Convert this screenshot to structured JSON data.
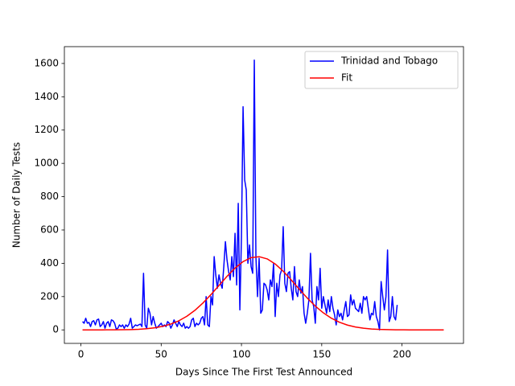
{
  "chart_data": {
    "type": "line",
    "xlabel": "Days Since The First Test Announced",
    "ylabel": "Number of Daily Tests",
    "xlim": [
      -10.3,
      238.3
    ],
    "xticks": [
      0,
      50,
      100,
      150,
      200
    ],
    "ylim": [
      -81,
      1701
    ],
    "yticks": [
      0,
      200,
      400,
      600,
      800,
      1000,
      1200,
      1400,
      1600
    ],
    "legend": "upper right",
    "series": [
      {
        "name": "Trinidad and Tobago",
        "color": "#0000ff",
        "x": [
          1,
          2,
          3,
          4,
          5,
          6,
          7,
          8,
          9,
          10,
          11,
          12,
          13,
          14,
          15,
          16,
          17,
          18,
          19,
          20,
          21,
          22,
          23,
          24,
          25,
          26,
          27,
          28,
          29,
          30,
          31,
          32,
          33,
          34,
          35,
          36,
          37,
          38,
          39,
          40,
          41,
          42,
          43,
          44,
          45,
          46,
          47,
          48,
          49,
          50,
          51,
          52,
          53,
          54,
          55,
          56,
          57,
          58,
          59,
          60,
          61,
          62,
          63,
          64,
          65,
          66,
          67,
          68,
          69,
          70,
          71,
          72,
          73,
          74,
          75,
          76,
          77,
          78,
          79,
          80,
          81,
          82,
          83,
          84,
          85,
          86,
          87,
          88,
          89,
          90,
          91,
          92,
          93,
          94,
          95,
          96,
          97,
          98,
          99,
          100,
          101,
          102,
          103,
          104,
          105,
          106,
          107,
          108,
          109,
          110,
          111,
          112,
          113,
          114,
          115,
          116,
          117,
          118,
          119,
          120,
          121,
          122,
          123,
          124,
          125,
          126,
          127,
          128,
          129,
          130,
          131,
          132,
          133,
          134,
          135,
          136,
          137,
          138,
          139,
          140,
          141,
          142,
          143,
          144,
          145,
          146,
          147,
          148,
          149,
          150,
          151,
          152,
          153,
          154,
          155,
          156,
          157,
          158,
          159,
          160,
          161,
          162,
          163,
          164,
          165,
          166,
          167,
          168,
          169,
          170,
          171,
          172,
          173,
          174,
          175,
          176,
          177,
          178,
          179,
          180,
          181,
          182,
          183,
          184,
          185,
          186,
          187,
          188,
          189,
          190,
          191,
          192,
          193,
          194,
          195,
          196,
          197
        ],
        "values": [
          50,
          40,
          70,
          40,
          45,
          20,
          50,
          55,
          30,
          60,
          65,
          20,
          30,
          50,
          10,
          40,
          50,
          20,
          60,
          55,
          40,
          5,
          10,
          30,
          20,
          30,
          10,
          30,
          20,
          35,
          70,
          10,
          20,
          30,
          25,
          30,
          35,
          20,
          340,
          30,
          10,
          130,
          100,
          30,
          80,
          40,
          10,
          20,
          30,
          40,
          20,
          30,
          20,
          50,
          40,
          10,
          30,
          60,
          40,
          20,
          50,
          30,
          20,
          40,
          10,
          20,
          10,
          20,
          60,
          70,
          20,
          40,
          30,
          40,
          70,
          80,
          30,
          200,
          30,
          20,
          200,
          150,
          440,
          330,
          250,
          330,
          280,
          250,
          380,
          530,
          420,
          350,
          300,
          440,
          320,
          580,
          270,
          760,
          120,
          560,
          1340,
          900,
          840,
          400,
          510,
          380,
          340,
          1620,
          440,
          200,
          430,
          100,
          120,
          280,
          270,
          240,
          180,
          300,
          260,
          400,
          80,
          280,
          200,
          330,
          360,
          620,
          280,
          230,
          340,
          350,
          250,
          180,
          380,
          230,
          200,
          300,
          220,
          260,
          100,
          40,
          100,
          180,
          460,
          180,
          140,
          40,
          260,
          180,
          370,
          130,
          200,
          150,
          100,
          180,
          110,
          200,
          130,
          90,
          30,
          120,
          80,
          100,
          60,
          120,
          170,
          80,
          90,
          210,
          150,
          180,
          130,
          120,
          110,
          160,
          100,
          200,
          180,
          200,
          130,
          60,
          100,
          90,
          170,
          80,
          50,
          0,
          290,
          200,
          120,
          200,
          480,
          50,
          80,
          200,
          80,
          60,
          150
        ]
      },
      {
        "name": "Fit",
        "color": "#ff0000",
        "x": [
          1,
          6,
          11,
          16,
          21,
          26,
          31,
          36,
          41,
          46,
          51,
          56,
          61,
          66,
          71,
          76,
          81,
          86,
          91,
          96,
          101,
          106,
          111,
          116,
          121,
          126,
          131,
          136,
          141,
          146,
          151,
          156,
          161,
          166,
          171,
          176,
          181,
          186,
          191,
          196,
          201,
          206,
          211,
          216,
          221,
          226
        ],
        "values": [
          0,
          0,
          0.1,
          0.2,
          0.5,
          1.0,
          1.9,
          3.8,
          7.1,
          12.6,
          21.4,
          35.0,
          54.7,
          81.9,
          117.5,
          161.3,
          212.0,
          266.9,
          321.6,
          371.2,
          410.1,
          433.9,
          439.6,
          426.5,
          396.1,
          352.3,
          300.0,
          244.7,
          191.0,
          142.9,
          102.3,
          70.1,
          46.0,
          28.9,
          17.4,
          10.0,
          5.5,
          2.9,
          1.5,
          0.7,
          0.3,
          0.1,
          0,
          0,
          0,
          0
        ]
      }
    ]
  }
}
